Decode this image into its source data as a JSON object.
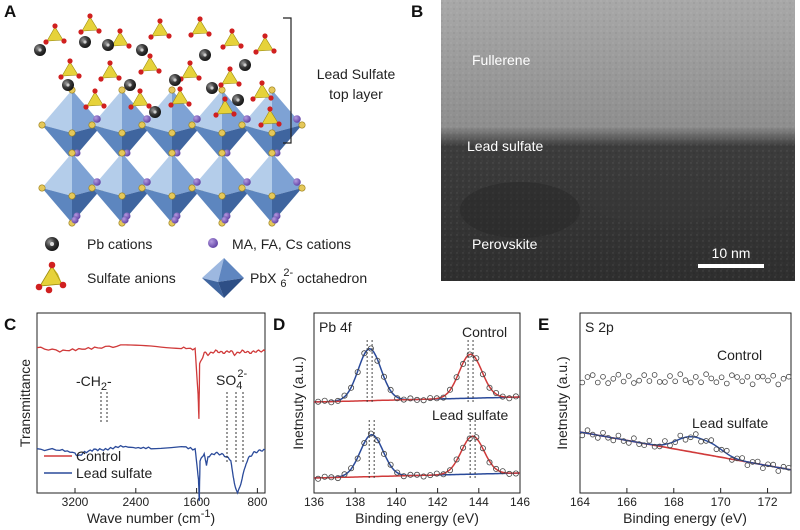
{
  "panels": {
    "A": {
      "label": "A",
      "top_layer_label_1": "Lead Sulfate",
      "top_layer_label_2": "top layer",
      "legend": {
        "pb": "Pb cations",
        "ma": "MA, FA, Cs cations",
        "sulfate": "Sulfate anions",
        "octa_prefix": "PbX",
        "octa_sub": "6",
        "octa_sup": "2-",
        "octa_suffix": " octahedron"
      }
    },
    "B": {
      "label": "B",
      "fullerene": "Fullerene",
      "lead_sulfate": "Lead sulfate",
      "perovskite": "Perovskite",
      "scalebar": "10 nm"
    },
    "C": {
      "label": "C",
      "ylabel": "Transmittance",
      "xlabel": "Wave number (cm",
      "xlabel_sup": "-1",
      "xlabel_end": ")",
      "annot_ch2": "-CH",
      "annot_ch2_sub": "2",
      "annot_ch2_end": "-",
      "annot_so4": "SO",
      "annot_so4_sub": "4",
      "annot_so4_sup": "2-",
      "legend_control": "Control",
      "legend_lead": "Lead sulfate"
    },
    "D": {
      "label": "D",
      "title": "Pb 4f",
      "ylabel": "Inetnsuty (a.u.)",
      "xlabel": "Binding energy (eV)",
      "label_control": "Control",
      "label_lead": "Lead sulfate"
    },
    "E": {
      "label": "E",
      "title": "S 2p",
      "ylabel": "Inetnsuty (a.u.)",
      "xlabel": "Binding energy (eV)",
      "label_control": "Control",
      "label_lead": "Lead sulfate"
    }
  },
  "chart_data": [
    {
      "panel": "C",
      "type": "line",
      "xlabel": "Wave number (cm-1)",
      "ylabel": "Transmittance",
      "x_reversed": true,
      "xticks": [
        "3200",
        "2400",
        "1600",
        "800"
      ],
      "xlim": [
        3700,
        700
      ],
      "series": [
        {
          "name": "Control",
          "color": "#d03a3a",
          "x": [
            3700,
            3400,
            3150,
            2900,
            2600,
            2200,
            1800,
            1620,
            1580,
            1570,
            1560,
            1500,
            1450,
            1350,
            1250,
            1150,
            1100,
            1000,
            900,
            800,
            700
          ],
          "y": [
            0.72,
            0.7,
            0.71,
            0.72,
            0.73,
            0.73,
            0.72,
            0.71,
            0.45,
            0.3,
            0.62,
            0.69,
            0.68,
            0.7,
            0.69,
            0.7,
            0.68,
            0.7,
            0.69,
            0.7,
            0.7
          ]
        },
        {
          "name": "Lead sulfate",
          "color": "#2a4a9a",
          "x": [
            3700,
            3400,
            3200,
            3150,
            3100,
            2950,
            2800,
            2600,
            2400,
            2200,
            1800,
            1620,
            1575,
            1565,
            1555,
            1500,
            1470,
            1450,
            1350,
            1250,
            1150,
            1120,
            1100,
            1060,
            1000,
            950,
            900,
            850,
            800,
            700
          ],
          "y": [
            0.12,
            0.12,
            0.1,
            0.08,
            0.1,
            0.12,
            0.12,
            0.14,
            0.13,
            0.13,
            0.14,
            0.12,
            -0.05,
            -0.18,
            0.05,
            0.1,
            0.02,
            0.08,
            0.1,
            0.09,
            0.06,
            -0.04,
            -0.08,
            -0.14,
            -0.05,
            0.04,
            0.08,
            0.1,
            0.11,
            0.12
          ]
        }
      ]
    },
    {
      "panel": "D",
      "type": "line",
      "xlabel": "Binding energy (eV)",
      "ylabel": "Inetnsuty (a.u.)",
      "xlim": [
        136,
        146
      ],
      "xticks": [
        "136",
        "138",
        "140",
        "142",
        "144",
        "146"
      ],
      "series": [
        {
          "name": "Control",
          "peaks_eV": [
            138.7,
            143.6
          ],
          "color_fit_1": "#2a4a9a",
          "color_fit_2": "#d03a3a"
        },
        {
          "name": "Lead sulfate",
          "peaks_eV": [
            138.8,
            143.7
          ],
          "color_fit_1": "#2a4a9a",
          "color_fit_2": "#d03a3a"
        }
      ]
    },
    {
      "panel": "E",
      "type": "scatter",
      "xlabel": "Binding energy (eV)",
      "ylabel": "Inetnsuty (a.u.)",
      "xlim": [
        164,
        173
      ],
      "xticks": [
        "164",
        "166",
        "168",
        "170",
        "172"
      ],
      "series": [
        {
          "name": "Control",
          "trend": "flat"
        },
        {
          "name": "Lead sulfate",
          "trend": "decreasing",
          "peaks_eV": [
            168.9
          ]
        }
      ]
    }
  ]
}
